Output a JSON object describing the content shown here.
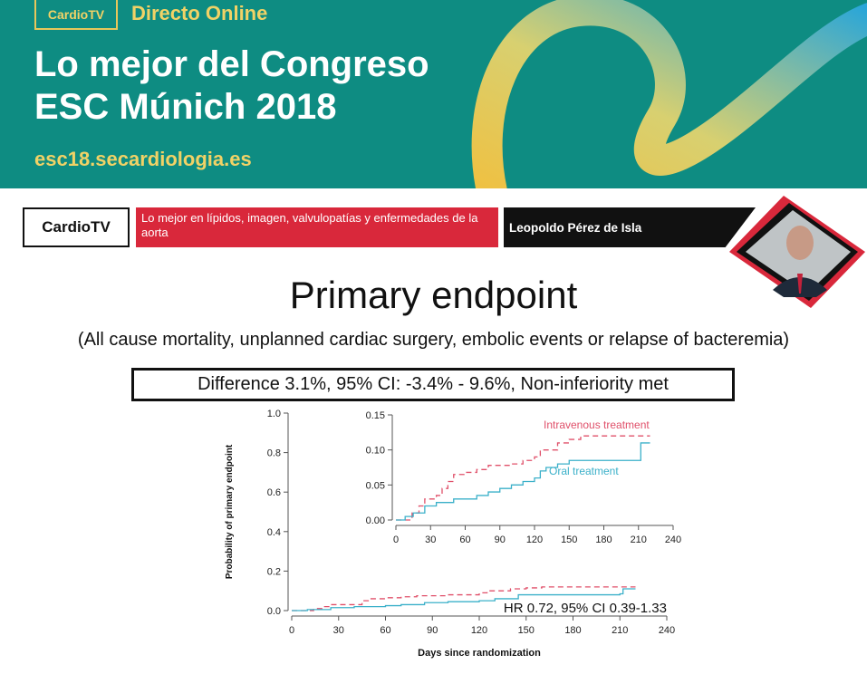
{
  "banner": {
    "logo": "CardioTV",
    "live": "Directo Online",
    "title_line1": "Lo mejor del Congreso",
    "title_line2": "ESC Múnich 2018",
    "url": "esc18.secardiologia.es",
    "colors": {
      "background": "#0e8c82",
      "accent": "#f1d266",
      "swirl_blue": "#2aa6d8"
    }
  },
  "lower_third": {
    "logo": "CardioTV",
    "topic": "Lo mejor en lípidos, imagen, valvulopatías y enfermedades de la aorta",
    "speaker": "Leopoldo Pérez de Isla",
    "colors": {
      "topic_bg": "#d9283b",
      "speaker_bg": "#111111"
    }
  },
  "slide": {
    "title": "Primary endpoint",
    "subtitle": "(All cause mortality, unplanned cardiac surgery, embolic events or relapse of bacteremia)",
    "result": "Difference 3.1%, 95% CI: -3.4% - 9.6%, Non-inferiority met"
  },
  "chart_data": [
    {
      "type": "line",
      "title": "",
      "xlabel": "Days since randomization",
      "ylabel": "Probability of primary endpoint",
      "xlim": [
        0,
        240
      ],
      "ylim": [
        0,
        1.0
      ],
      "x_ticks": [
        0,
        30,
        60,
        90,
        120,
        150,
        180,
        210,
        240
      ],
      "y_ticks": [
        "0.0",
        "0.2",
        "0.4",
        "0.6",
        "0.8",
        "1.0"
      ],
      "annotation": "HR 0.72, 95% CI 0.39-1.33",
      "series": [
        {
          "name": "Intravenous treatment",
          "color": "#e0506a",
          "style": "dashed",
          "points": [
            [
              0,
              0
            ],
            [
              14,
              0.01
            ],
            [
              20,
              0.02
            ],
            [
              25,
              0.03
            ],
            [
              45,
              0.05
            ],
            [
              50,
              0.06
            ],
            [
              60,
              0.065
            ],
            [
              70,
              0.07
            ],
            [
              80,
              0.075
            ],
            [
              100,
              0.08
            ],
            [
              120,
              0.09
            ],
            [
              125,
              0.1
            ],
            [
              140,
              0.11
            ],
            [
              150,
              0.115
            ],
            [
              160,
              0.12
            ],
            [
              220,
              0.12
            ]
          ]
        },
        {
          "name": "Oral treatment",
          "color": "#3bb0c9",
          "style": "solid",
          "points": [
            [
              0,
              0
            ],
            [
              10,
              0.005
            ],
            [
              25,
              0.015
            ],
            [
              40,
              0.02
            ],
            [
              60,
              0.025
            ],
            [
              70,
              0.03
            ],
            [
              85,
              0.04
            ],
            [
              100,
              0.045
            ],
            [
              120,
              0.05
            ],
            [
              130,
              0.06
            ],
            [
              145,
              0.08
            ],
            [
              210,
              0.085
            ],
            [
              212,
              0.11
            ],
            [
              220,
              0.11
            ]
          ]
        }
      ]
    },
    {
      "type": "line",
      "title": "",
      "xlabel": "",
      "ylabel": "",
      "xlim": [
        0,
        240
      ],
      "ylim": [
        0,
        0.15
      ],
      "x_ticks": [
        0,
        30,
        60,
        90,
        120,
        150,
        180,
        210,
        240
      ],
      "y_ticks": [
        "0.00",
        "0.05",
        "0.10",
        "0.15"
      ],
      "series": [
        {
          "name": "Intravenous treatment",
          "color": "#e0506a",
          "style": "dashed",
          "points": [
            [
              0,
              0
            ],
            [
              14,
              0.01
            ],
            [
              20,
              0.02
            ],
            [
              25,
              0.03
            ],
            [
              35,
              0.035
            ],
            [
              40,
              0.045
            ],
            [
              45,
              0.055
            ],
            [
              50,
              0.065
            ],
            [
              60,
              0.068
            ],
            [
              70,
              0.072
            ],
            [
              80,
              0.078
            ],
            [
              100,
              0.08
            ],
            [
              110,
              0.085
            ],
            [
              120,
              0.09
            ],
            [
              125,
              0.1
            ],
            [
              140,
              0.11
            ],
            [
              150,
              0.115
            ],
            [
              160,
              0.12
            ],
            [
              220,
              0.12
            ]
          ]
        },
        {
          "name": "Oral treatment",
          "color": "#3bb0c9",
          "style": "solid",
          "points": [
            [
              0,
              0
            ],
            [
              8,
              0.005
            ],
            [
              15,
              0.01
            ],
            [
              25,
              0.02
            ],
            [
              35,
              0.025
            ],
            [
              50,
              0.03
            ],
            [
              65,
              0.03
            ],
            [
              70,
              0.035
            ],
            [
              80,
              0.04
            ],
            [
              90,
              0.045
            ],
            [
              100,
              0.05
            ],
            [
              110,
              0.055
            ],
            [
              120,
              0.06
            ],
            [
              125,
              0.07
            ],
            [
              130,
              0.075
            ],
            [
              140,
              0.08
            ],
            [
              150,
              0.085
            ],
            [
              210,
              0.085
            ],
            [
              212,
              0.11
            ],
            [
              220,
              0.11
            ]
          ]
        }
      ]
    }
  ]
}
